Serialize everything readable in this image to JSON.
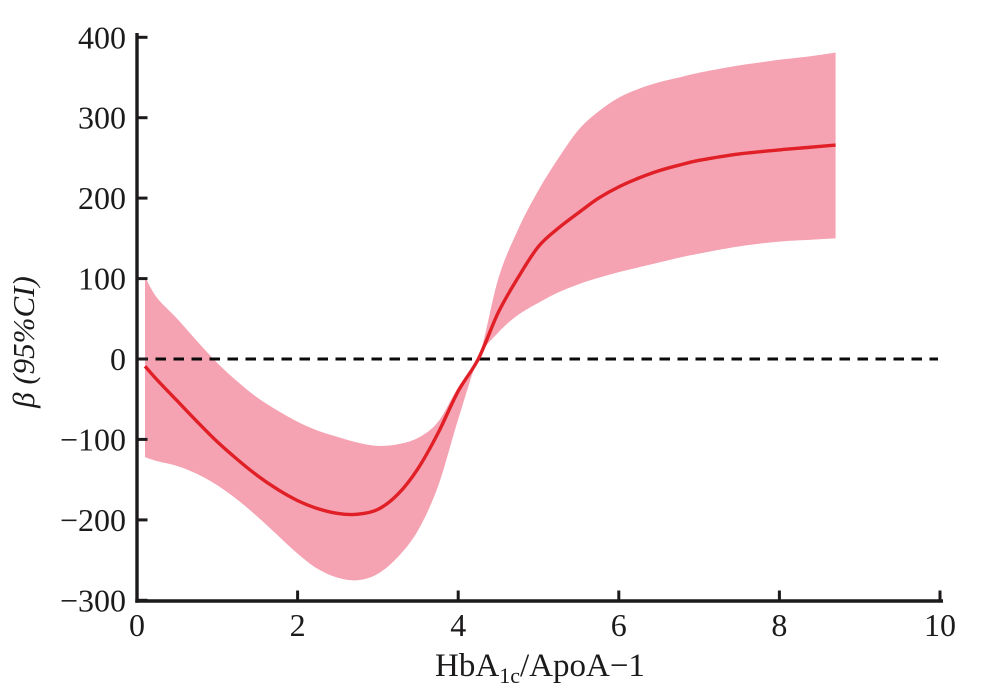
{
  "page": {
    "background": "#ffffff"
  },
  "chart_data": {
    "type": "line",
    "title": "",
    "xlabel": "HbA1c/ApoA−1",
    "xlabel_parts": {
      "prefix": "HbA",
      "subscript": "1c",
      "suffix": "/ApoA−1"
    },
    "ylabel": "β (95%CI)",
    "xlim": [
      0,
      10
    ],
    "ylim": [
      -300,
      400
    ],
    "xticks": {
      "values": [
        0,
        2,
        4,
        6,
        8,
        10
      ],
      "labels": [
        "0",
        "2",
        "4",
        "6",
        "8",
        "10"
      ]
    },
    "yticks": {
      "values": [
        400,
        300,
        200,
        100,
        0,
        -100,
        -200,
        -300
      ],
      "labels": [
        "400",
        "300",
        "200",
        "100",
        "0",
        "−100",
        "−200",
        "−300"
      ]
    },
    "grid": false,
    "legend": null,
    "reference_line": {
      "y": 0,
      "style": "dashed",
      "color": "#0a0a0a"
    },
    "colors": {
      "line": "#e01f26",
      "band": "#f5a3b2",
      "axis": "#1c1a1a"
    },
    "reference_point_x": 4.25,
    "x_range_of_data": [
      0.1,
      8.7
    ],
    "x": [
      0.1,
      0.25,
      0.5,
      0.75,
      1.0,
      1.25,
      1.5,
      1.75,
      2.0,
      2.25,
      2.5,
      2.75,
      3.0,
      3.25,
      3.5,
      3.75,
      4.0,
      4.25,
      4.5,
      4.75,
      5.0,
      5.25,
      5.5,
      5.75,
      6.0,
      6.25,
      6.5,
      6.75,
      7.0,
      7.5,
      8.0,
      8.35,
      8.7
    ],
    "series": [
      {
        "name": "β estimate (spline)",
        "role": "line",
        "values": [
          -9,
          -26,
          -52,
          -78,
          -103,
          -125,
          -145,
          -162,
          -176,
          -186,
          -192,
          -193,
          -187,
          -168,
          -136,
          -92,
          -40,
          0,
          58,
          102,
          140,
          163,
          182,
          200,
          214,
          225,
          234,
          241,
          247,
          255,
          260,
          263,
          266
        ]
      },
      {
        "name": "95% CI upper",
        "role": "band-upper",
        "values": [
          102,
          76,
          50,
          22,
          -5,
          -28,
          -48,
          -64,
          -78,
          -89,
          -97,
          -104,
          -108,
          -106,
          -98,
          -78,
          -35,
          0,
          100,
          162,
          210,
          250,
          285,
          308,
          325,
          336,
          344,
          350,
          356,
          365,
          372,
          376,
          381
        ]
      },
      {
        "name": "95% CI lower",
        "role": "band-lower",
        "values": [
          -122,
          -127,
          -133,
          -143,
          -157,
          -175,
          -196,
          -219,
          -242,
          -261,
          -272,
          -275,
          -267,
          -246,
          -213,
          -158,
          -75,
          0,
          33,
          55,
          70,
          83,
          93,
          101,
          108,
          114,
          120,
          126,
          131,
          140,
          146,
          148,
          150
        ]
      }
    ]
  }
}
